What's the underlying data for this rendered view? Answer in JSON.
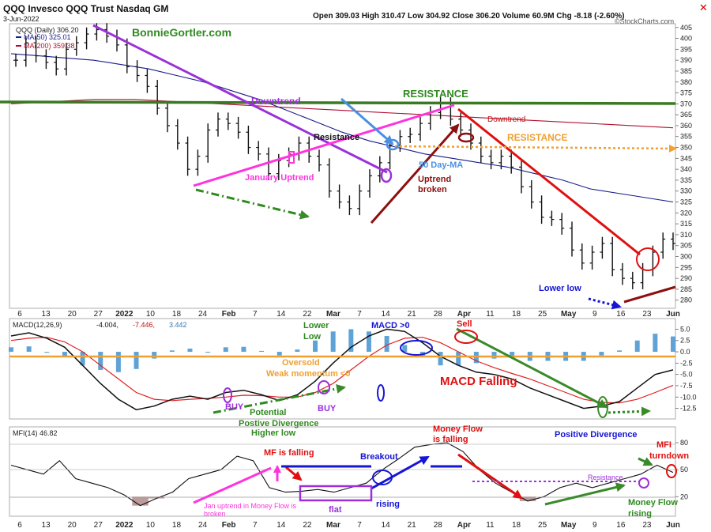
{
  "header": {
    "title": "QQQ Invesco QQQ Trust Nasdaq GM",
    "date": "3-Jun-2022",
    "ohlc": "Open 309.03  High 310.47  Low 304.92  Close 306.20  Volume 60.9M  Chg -8.18 (-2.60%)",
    "watermark": "©StockCharts.com"
  },
  "price_panel": {
    "legend_main": "QQQ (Daily) 306.20",
    "legend_ma50": "MA(50) 325.01",
    "legend_ma200": "MA(200) 359.38",
    "brand": "BonnieGortler.com",
    "annotations": {
      "downtrend_left": "Downtrend",
      "resistance_top": "RESISTANCE",
      "resistance_small": "Resistance",
      "jan_uptrend": "January Uptrend",
      "ma_label": "50 Day-MA",
      "uptrend_broken_1": "Uptrend",
      "uptrend_broken_2": "broken",
      "downtrend_right": "Downtrend",
      "resistance_right": "RESISTANCE",
      "lower_low": "Lower low"
    }
  },
  "macd_panel": {
    "legend_label": "MACD(12,26,9)",
    "legend_values": [
      "-4.004,",
      "-7.446,",
      "3.442"
    ],
    "annotations": {
      "lower_low_1": "Lower",
      "lower_low_2": "Low",
      "macd_gt0": "MACD >0",
      "sell": "Sell",
      "oversold": "Oversold",
      "weak_momentum": "Weak momentum <0",
      "macd_falling": "MACD Falling",
      "buy1": "BUY",
      "buy2": "BUY",
      "potential": "Potential",
      "pos_div_1": "Postive Divergence",
      "pos_div_2": "Higher low",
      "pos_div_right": "Positive Divergence"
    }
  },
  "mfi_panel": {
    "legend_label": "MFI(14) 46.82",
    "annotations": {
      "mf_falling": "MF is falling",
      "breakout": "Breakout",
      "money_flow_1": "Money Flow",
      "money_flow_2": "is falling",
      "mfi_turn_1": "MFI",
      "mfi_turn_2": "turndown",
      "resistance": "Resistance",
      "jan_uptrend_1": "Jan uptrend in Money Flow is",
      "jan_uptrend_2": "broken",
      "flat": "flat",
      "rising": "rising",
      "mf_rising_1": "Money Flow",
      "mf_rising_2": "rising"
    }
  },
  "chart_data": [
    {
      "type": "line",
      "title": "QQQ Invesco QQQ Trust Nasdaq GM",
      "x_axis_labels": [
        "6",
        "13",
        "20",
        "27",
        "2022",
        "10",
        "18",
        "24",
        "Feb",
        "7",
        "14",
        "22",
        "Mar",
        "7",
        "14",
        "21",
        "28",
        "Apr",
        "11",
        "18",
        "25",
        "May",
        "9",
        "16",
        "23",
        "Jun"
      ],
      "ylim": [
        277,
        406
      ],
      "y_ticks": [
        280,
        285,
        290,
        295,
        300,
        305,
        310,
        315,
        320,
        325,
        330,
        335,
        340,
        345,
        350,
        355,
        360,
        365,
        370,
        375,
        380,
        385,
        390,
        395,
        400,
        405
      ],
      "series": [
        {
          "name": "QQQ (Daily)",
          "values": [
            390,
            398,
            392,
            389,
            386,
            395,
            398,
            402,
            404,
            401,
            397,
            387,
            383,
            378,
            368,
            360,
            352,
            340,
            346,
            358,
            363,
            361,
            357,
            350,
            347,
            338,
            344,
            347,
            352,
            346,
            342,
            330,
            325,
            322,
            330,
            337,
            343,
            351,
            355,
            356,
            361,
            366,
            370,
            363,
            358,
            352,
            346,
            343,
            346,
            341,
            332,
            325,
            318,
            317,
            313,
            303,
            297,
            302,
            306,
            294,
            290,
            288,
            294,
            302,
            308,
            306
          ]
        },
        {
          "name": "MA(50)",
          "values": [
            393,
            392,
            391,
            390,
            388,
            386,
            383,
            380,
            376,
            372,
            367,
            362,
            357,
            353,
            350,
            347,
            345,
            343,
            341,
            338,
            335,
            331,
            329,
            327,
            325
          ]
        },
        {
          "name": "MA(200)",
          "values": [
            370,
            371,
            372,
            372,
            371,
            370,
            369,
            368,
            367,
            366,
            365,
            364,
            363,
            362,
            361,
            360,
            359
          ]
        }
      ]
    },
    {
      "type": "line",
      "title": "MACD(12,26,9)",
      "ylim": [
        -14.5,
        7
      ],
      "y_ticks": [
        5.0,
        2.5,
        0.0,
        -2.5,
        -5.0,
        -7.5,
        -10.0,
        -12.5
      ],
      "series": [
        {
          "name": "MACD",
          "values": [
            3.5,
            4.2,
            3.0,
            1.0,
            -3.0,
            -7.0,
            -10.5,
            -12.8,
            -12.0,
            -10.5,
            -9.8,
            -10.5,
            -9.0,
            -8.5,
            -9.5,
            -10.8,
            -9.5,
            -6.5,
            -2.5,
            1.0,
            3.5,
            5.0,
            4.5,
            2.0,
            -1.0,
            -3.0,
            -4.5,
            -5.0,
            -6.0,
            -8.0,
            -9.5,
            -11.0,
            -12.5,
            -12.0,
            -11.0,
            -8.0,
            -5.0,
            -4.0
          ]
        },
        {
          "name": "Signal",
          "values": [
            2.5,
            3.0,
            3.2,
            2.2,
            0.0,
            -3.0,
            -6.0,
            -9.0,
            -10.5,
            -10.8,
            -10.5,
            -10.3,
            -10.0,
            -9.6,
            -9.7,
            -10.0,
            -10.0,
            -9.0,
            -7.0,
            -4.0,
            -1.0,
            1.5,
            3.0,
            3.2,
            2.0,
            0.0,
            -2.0,
            -3.5,
            -4.8,
            -6.0,
            -7.5,
            -9.0,
            -10.5,
            -11.2,
            -11.3,
            -10.5,
            -9.0,
            -7.4
          ]
        },
        {
          "name": "Histogram",
          "values": [
            1.0,
            1.2,
            -0.2,
            -1.2,
            -3.0,
            -4.0,
            -4.5,
            -3.8,
            -1.5,
            0.3,
            0.7,
            -0.2,
            1.0,
            1.1,
            0.2,
            -0.8,
            0.5,
            2.5,
            4.5,
            5.0,
            4.5,
            3.5,
            1.5,
            -1.2,
            -3.0,
            -3.0,
            -2.5,
            -1.5,
            -1.2,
            -2.0,
            -2.0,
            -2.0,
            -2.0,
            -0.8,
            0.3,
            2.5,
            4.0,
            3.4
          ]
        }
      ]
    },
    {
      "type": "line",
      "title": "MFI(14)",
      "ylim": [
        0,
        95
      ],
      "y_ticks": [
        80,
        50,
        20
      ],
      "series": [
        {
          "name": "MFI(14)",
          "values": [
            55,
            50,
            45,
            60,
            40,
            35,
            30,
            22,
            10,
            18,
            25,
            40,
            45,
            50,
            65,
            60,
            30,
            25,
            26,
            28,
            25,
            30,
            35,
            50,
            62,
            75,
            78,
            80,
            70,
            50,
            35,
            25,
            15,
            20,
            30,
            35,
            30,
            35,
            40,
            45,
            55,
            47
          ]
        }
      ]
    }
  ]
}
